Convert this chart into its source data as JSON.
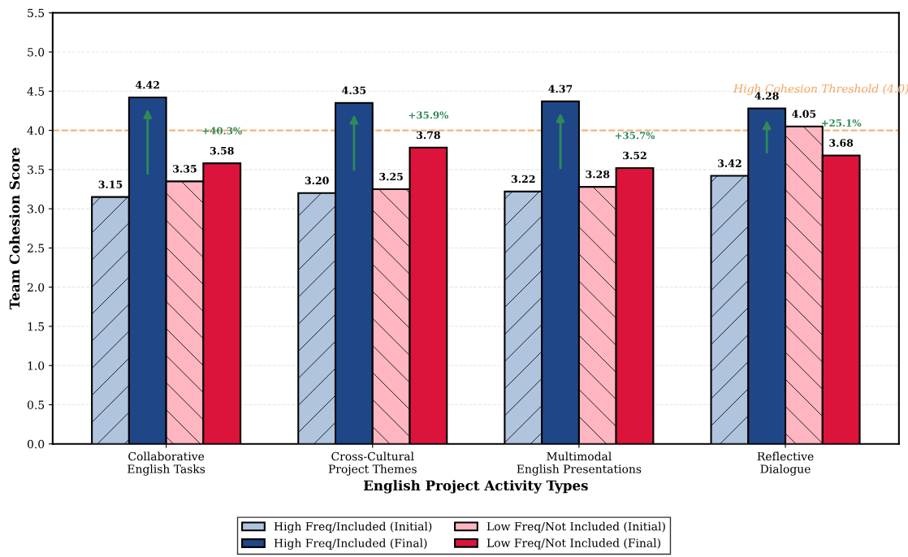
{
  "chart_data": {
    "type": "bar",
    "xlabel": "English Project Activity Types",
    "ylabel": "Team Cohesion Score",
    "categories": [
      "Collaborative\nEnglish Tasks",
      "Cross-Cultural\nProject Themes",
      "Multimodal\nEnglish Presentations",
      "Reflective\nDialogue"
    ],
    "series": [
      {
        "name": "High Freq/Included (Initial)",
        "color": "#b0c4de",
        "values": [
          3.15,
          3.2,
          3.22,
          3.42
        ],
        "value_labels": [
          "3.15",
          "3.20",
          "3.22",
          "3.42"
        ]
      },
      {
        "name": "High Freq/Included (Final)",
        "color": "#1f4788",
        "values": [
          4.42,
          4.35,
          4.37,
          4.28
        ],
        "value_labels": [
          "4.42",
          "4.35",
          "4.37",
          "4.28"
        ]
      },
      {
        "name": "Low Freq/Not Included (Initial)",
        "color": "#ffb6c1",
        "values": [
          3.35,
          3.25,
          3.28,
          4.05
        ],
        "value_labels": [
          "3.35",
          "3.25",
          "3.28",
          "4.05"
        ]
      },
      {
        "name": "Low Freq/Not Included (Final)",
        "color": "#dc143c",
        "values": [
          3.58,
          3.78,
          3.52,
          3.68
        ],
        "value_labels": [
          "3.58",
          "3.78",
          "3.52",
          "3.68"
        ]
      }
    ],
    "ylim": [
      0,
      5.5
    ],
    "yticks": [
      {
        "value": 0,
        "label": "0.0"
      },
      {
        "value": 0.5,
        "label": "0.5"
      },
      {
        "value": 1,
        "label": "1.0"
      },
      {
        "value": 1.5,
        "label": "1.5"
      },
      {
        "value": 2,
        "label": "2.0"
      },
      {
        "value": 2.5,
        "label": "2.5"
      },
      {
        "value": 3,
        "label": "3.0"
      },
      {
        "value": 3.5,
        "label": "3.5"
      },
      {
        "value": 4,
        "label": "4.0"
      },
      {
        "value": 4.5,
        "label": "4.5"
      },
      {
        "value": 5,
        "label": "5.0"
      },
      {
        "value": 5.5,
        "label": "5.5"
      }
    ],
    "ref_lines": [
      {
        "axis": "y",
        "value": 4.0,
        "label": "High Cohesion Threshold (4.0)",
        "color": "#f4a460",
        "line_style": "dashed"
      }
    ],
    "annotations": [
      "+40.3%",
      "+35.9%",
      "+35.7%",
      "+25.1%"
    ],
    "grid": "y",
    "legend": "bottom"
  }
}
